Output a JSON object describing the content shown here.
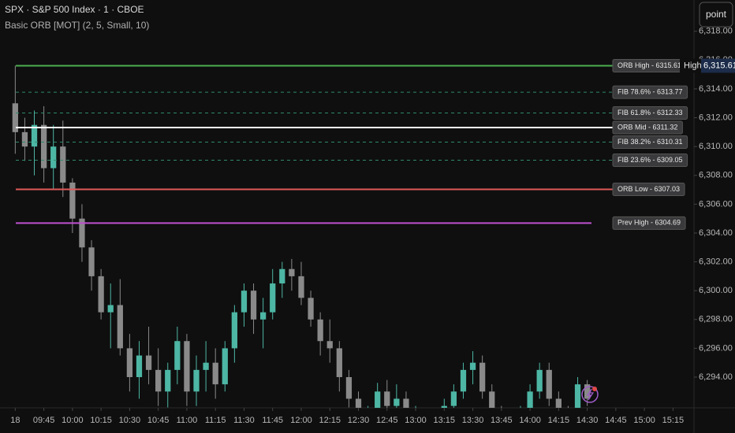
{
  "chart_data": {
    "type": "candlestick",
    "title": "SPX · S&P 500 Index · 1 · CBOE",
    "subtitle": "Basic ORB [MOT] (2, 5, Small, 10)",
    "button": "point",
    "up_color": "#4db6a4",
    "down_color": "#8a8a8a",
    "x": [
      "09:30",
      "09:35",
      "09:40",
      "09:45",
      "09:50",
      "09:55",
      "10:00",
      "10:05",
      "10:10",
      "10:15",
      "10:20",
      "10:25",
      "10:30",
      "10:35",
      "10:40",
      "10:45",
      "10:50",
      "10:55",
      "11:00",
      "11:05",
      "11:10",
      "11:15",
      "11:20",
      "11:25",
      "11:30",
      "11:35",
      "11:40",
      "11:45",
      "11:50",
      "11:55",
      "12:00",
      "12:05",
      "12:10",
      "12:15",
      "12:20",
      "12:25",
      "12:30",
      "12:35",
      "12:40",
      "12:45",
      "12:50",
      "12:55",
      "13:00",
      "13:05",
      "13:10",
      "13:15",
      "13:20",
      "13:25",
      "13:30",
      "13:35",
      "13:40",
      "13:45",
      "13:50",
      "13:55",
      "14:00",
      "14:05",
      "14:10",
      "14:15",
      "14:20",
      "14:25",
      "14:30"
    ],
    "open": [
      6313,
      6311,
      6310,
      6311.5,
      6308.5,
      6310,
      6307.5,
      6305,
      6303,
      6301,
      6298.5,
      6299,
      6296,
      6294,
      6295.5,
      6294.5,
      6293,
      6294.5,
      6296.5,
      6293,
      6294.5,
      6295,
      6293.5,
      6296,
      6298.5,
      6300,
      6298,
      6298.5,
      6300.5,
      6301.5,
      6301,
      6299.5,
      6298,
      6296.5,
      6296,
      6294,
      6292.5,
      6291,
      6291.5,
      6293,
      6292,
      6292.5,
      6291,
      6291,
      6290.5,
      6291,
      6292,
      6293,
      6294.5,
      6295,
      6293,
      6291.5,
      6291,
      6290.5,
      6291.5,
      6293,
      6294.5,
      6292.5,
      6291.5,
      6291,
      6293.5
    ],
    "high": [
      6315.61,
      6312,
      6312.5,
      6312.8,
      6311.5,
      6311.8,
      6307.8,
      6306,
      6303.5,
      6301.5,
      6300.5,
      6300.8,
      6297,
      6296.5,
      6297.5,
      6296,
      6295,
      6297.5,
      6297,
      6295.5,
      6296.5,
      6296,
      6296.5,
      6299,
      6300.5,
      6300.5,
      6299.5,
      6301.5,
      6302,
      6302.2,
      6302,
      6300,
      6298.5,
      6298,
      6296.5,
      6294.5,
      6293,
      6292,
      6293.6,
      6293.8,
      6293.5,
      6293,
      6292,
      6291.5,
      6291.5,
      6292.5,
      6293.5,
      6295,
      6295.8,
      6295.5,
      6293.5,
      6292,
      6291.5,
      6292,
      6293.5,
      6295,
      6295,
      6293,
      6292,
      6294,
      6293.8
    ],
    "low": [
      6309.5,
      6309,
      6308,
      6307.5,
      6307,
      6306.5,
      6304,
      6302,
      6300,
      6298,
      6296,
      6295.5,
      6293,
      6292.5,
      6293.5,
      6292,
      6291.9,
      6293.5,
      6292,
      6292,
      6293,
      6292.5,
      6293,
      6295,
      6297.5,
      6297,
      6296,
      6298,
      6299.5,
      6300,
      6299,
      6297.5,
      6295.5,
      6295,
      6293,
      6291.9,
      6290.5,
      6290,
      6291,
      6291.5,
      6291,
      6290.5,
      6290,
      6290,
      6290,
      6290.5,
      6291.5,
      6292.5,
      6293.5,
      6292.5,
      6291,
      6290.5,
      6290,
      6290,
      6291,
      6292.5,
      6292,
      6291,
      6290.5,
      6291,
      6292
    ],
    "close": [
      6311,
      6310,
      6311.5,
      6308.5,
      6310,
      6307.5,
      6305,
      6303,
      6301,
      6298.5,
      6299,
      6296,
      6294,
      6295.5,
      6294.5,
      6293,
      6294.5,
      6296.5,
      6293,
      6294.5,
      6295,
      6293.5,
      6296,
      6298.5,
      6300,
      6298,
      6298.5,
      6300.5,
      6301.5,
      6301,
      6299.5,
      6298,
      6296.5,
      6296,
      6294,
      6292.5,
      6291,
      6291.5,
      6293,
      6292,
      6292.5,
      6291,
      6291,
      6290.5,
      6291,
      6292,
      6293,
      6294.5,
      6295,
      6293,
      6291.5,
      6291,
      6290.5,
      6291.5,
      6293,
      6294.5,
      6292.5,
      6291.5,
      6291,
      6293.5,
      6292.5
    ],
    "levels": [
      {
        "name": "ORB High - 6315.61",
        "value": 6315.61,
        "color": "#4caf50",
        "style": "solid"
      },
      {
        "name": "FIB 78.6% - 6313.77",
        "value": 6313.77,
        "color": "#2f8a68",
        "style": "dashed"
      },
      {
        "name": "FIB 61.8% - 6312.33",
        "value": 6312.33,
        "color": "#2f8a68",
        "style": "dashed"
      },
      {
        "name": "ORB Mid - 6311.32",
        "value": 6311.32,
        "color": "#ffffff",
        "style": "solid"
      },
      {
        "name": "FIB 38.2% - 6310.31",
        "value": 6310.31,
        "color": "#2f8a68",
        "style": "dashed"
      },
      {
        "name": "FIB 23.6% - 6309.05",
        "value": 6309.05,
        "color": "#2f8a68",
        "style": "dashed"
      },
      {
        "name": "ORB Low - 6307.03",
        "value": 6307.03,
        "color": "#e05858",
        "style": "solid"
      },
      {
        "name": "Prev High - 6304.69",
        "value": 6304.69,
        "color": "#c050d0",
        "style": "solid"
      }
    ],
    "high_badge": {
      "label": "High",
      "value": 6315.61,
      "value_label": "6,315.61"
    },
    "xlim": [
      "09:22",
      "15:26"
    ],
    "xticks": [
      {
        "value": "09:30",
        "label": "18"
      },
      "09:45",
      "10:00",
      "10:15",
      "10:30",
      "10:45",
      "11:00",
      "11:15",
      "11:30",
      "11:45",
      "12:00",
      "12:15",
      "12:30",
      "12:45",
      "13:00",
      "13:15",
      "13:30",
      "13:45",
      "14:00",
      "14:15",
      "14:30",
      "14:45",
      "15:00",
      "15:15"
    ],
    "ylim": [
      6291.87,
      6320.17
    ],
    "yticks": [
      {
        "value": 6294,
        "label": "6,294.00"
      },
      {
        "value": 6296,
        "label": "6,296.00"
      },
      {
        "value": 6298,
        "label": "6,298.00"
      },
      {
        "value": 6300,
        "label": "6,300.00"
      },
      {
        "value": 6302,
        "label": "6,302.00"
      },
      {
        "value": 6304,
        "label": "6,304.00"
      },
      {
        "value": 6306,
        "label": "6,306.00"
      },
      {
        "value": 6308,
        "label": "6,308.00"
      },
      {
        "value": 6310,
        "label": "6,310.00"
      },
      {
        "value": 6312,
        "label": "6,312.00"
      },
      {
        "value": 6314,
        "label": "6,314.00"
      },
      {
        "value": 6316,
        "label": "6,316.00"
      },
      {
        "value": 6318,
        "label": "6,318.00"
      }
    ]
  }
}
